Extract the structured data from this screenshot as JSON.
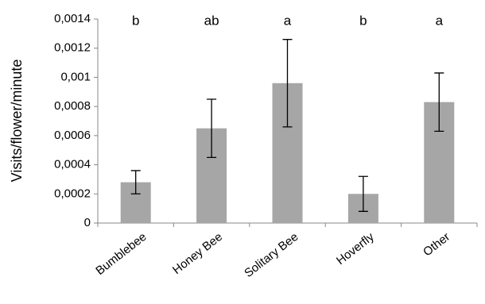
{
  "chart_data": {
    "type": "bar",
    "y_label": "Visits/flower/minute",
    "categories": [
      "Bumblebee",
      "Honey Bee",
      "Solitary Bee",
      "Hoverfly",
      "Other"
    ],
    "values": [
      0.00028,
      0.00065,
      0.00096,
      0.0002,
      0.00083
    ],
    "errors": [
      8e-05,
      0.0002,
      0.0003,
      0.00012,
      0.0002
    ],
    "annotations": [
      "b",
      "ab",
      "a",
      "b",
      "a"
    ],
    "color": "#a6a6a6",
    "ylim": [
      0,
      0.0014
    ],
    "yticks": [
      0,
      {
        "value": 0.0002,
        "label": "0,0002"
      },
      {
        "value": 0.0004,
        "label": "0,0004"
      },
      {
        "value": 0.0006,
        "label": "0,0006"
      },
      {
        "value": 0.0008,
        "label": "0,0008"
      },
      {
        "value": 0.001,
        "label": "0,001"
      },
      {
        "value": 0.0012,
        "label": "0,0012"
      },
      {
        "value": 0.0014,
        "label": "0,0014"
      }
    ],
    "grid": false
  }
}
